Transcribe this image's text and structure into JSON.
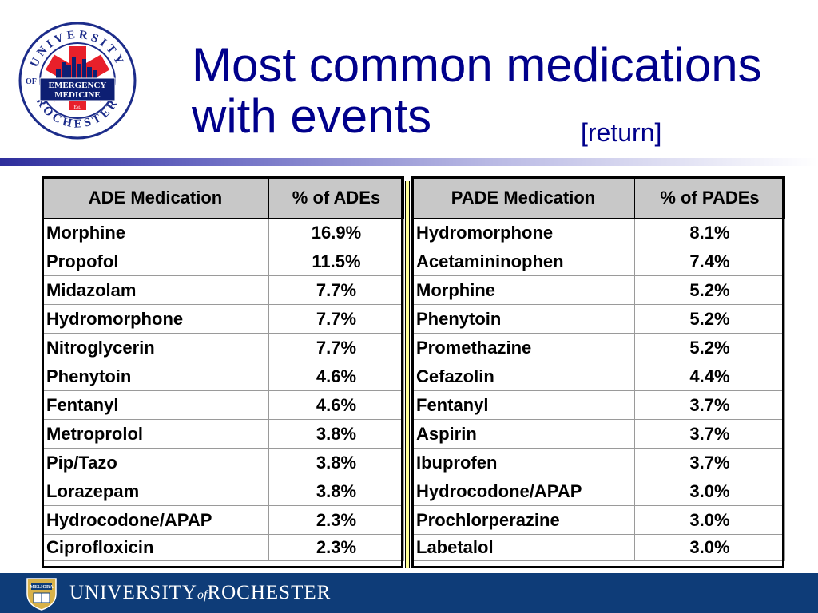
{
  "logo": {
    "university_arc_top": "UNIVERSITY",
    "university_arc_bottom": "ROCHESTER",
    "of_text": "OF",
    "line1": "EMERGENCY",
    "line2": "MEDICINE",
    "est": "Est.",
    "year": "1994",
    "colors": {
      "star": "#e8202a",
      "banner": "#0d1f73",
      "ring": "#1c2c8a"
    }
  },
  "title": {
    "line1": "Most common medications",
    "line2": "with events",
    "return_link": "[return]",
    "color": "#00008b"
  },
  "ade_table": {
    "headers": [
      "ADE Medication",
      "% of ADEs"
    ],
    "rows": [
      [
        "Morphine",
        "16.9%"
      ],
      [
        "Propofol",
        "11.5%"
      ],
      [
        "Midazolam",
        "7.7%"
      ],
      [
        "Hydromorphone",
        "7.7%"
      ],
      [
        "Nitroglycerin",
        "7.7%"
      ],
      [
        "Phenytoin",
        "4.6%"
      ],
      [
        "Fentanyl",
        "4.6%"
      ],
      [
        "Metroprolol",
        "3.8%"
      ],
      [
        "Pip/Tazo",
        "3.8%"
      ],
      [
        "Lorazepam",
        "3.8%"
      ],
      [
        "Hydrocodone/APAP",
        "2.3%"
      ],
      [
        "Ciprofloxicin",
        "2.3%"
      ]
    ]
  },
  "pade_table": {
    "headers": [
      "PADE Medication",
      "% of PADEs"
    ],
    "rows": [
      [
        "Hydromorphone",
        "8.1%"
      ],
      [
        "Acetamininophen",
        "7.4%"
      ],
      [
        "Morphine",
        "5.2%"
      ],
      [
        "Phenytoin",
        "5.2%"
      ],
      [
        "Promethazine",
        "5.2%"
      ],
      [
        "Cefazolin",
        "4.4%"
      ],
      [
        "Fentanyl",
        "3.7%"
      ],
      [
        "Aspirin",
        "3.7%"
      ],
      [
        "Ibuprofen",
        "3.7%"
      ],
      [
        "Hydrocodone/APAP",
        "3.0%"
      ],
      [
        "Prochlorperazine",
        "3.0%"
      ],
      [
        "Labetalol",
        "3.0%"
      ]
    ]
  },
  "footer": {
    "university": "UNIVERSITY",
    "of": "of",
    "rochester": "ROCHESTER",
    "seal_motto": "MELIORA",
    "background": "#0e3c78"
  }
}
